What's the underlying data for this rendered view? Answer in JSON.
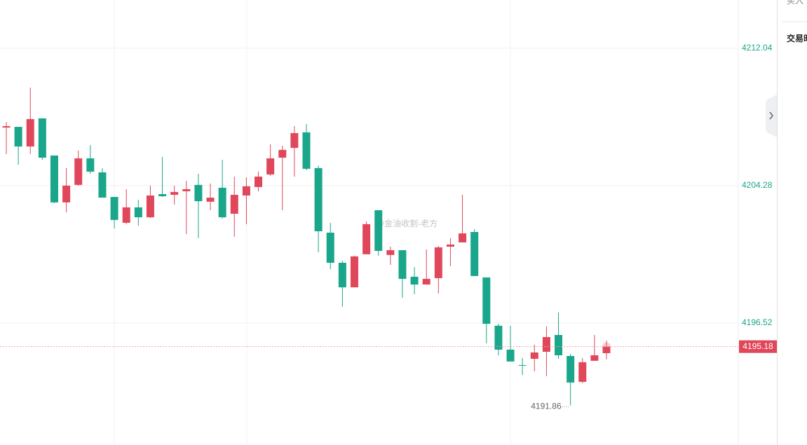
{
  "chart_data": {
    "type": "candlestick",
    "open": [
      4207.56,
      4207.6,
      4206.49,
      4208.08,
      4205.98,
      4203.33,
      4204.32,
      4205.82,
      4205.03,
      4203.64,
      4202.18,
      4203.05,
      4202.49,
      4203.8,
      4203.76,
      4203.96,
      4204.32,
      4203.37,
      4204.16,
      4202.69,
      4203.72,
      4204.2,
      4204.91,
      4205.86,
      4206.41,
      4207.29,
      4205.27,
      4201.62,
      4199.92,
      4198.53,
      4200.4,
      4202.89,
      4200.36,
      4200.63,
      4199.13,
      4198.69,
      4199.05,
      4200.83,
      4201.07,
      4201.66,
      4199.09,
      4196.36,
      4195.01,
      4194.14,
      4194.49,
      4194.89,
      4195.84,
      4194.65,
      4193.19,
      4194.38,
      4194.81
    ],
    "high": [
      4207.88,
      4207.6,
      4209.82,
      4208.08,
      4205.98,
      4205.27,
      4206.26,
      4206.57,
      4205.27,
      4203.64,
      4204.08,
      4203.48,
      4204.28,
      4205.9,
      4204.28,
      4204.55,
      4204.95,
      4204.4,
      4205.74,
      4204.79,
      4204.75,
      4205.07,
      4206.61,
      4206.53,
      4207.64,
      4207.76,
      4205.42,
      4202.18,
      4200.04,
      4200.32,
      4202.26,
      4202.89,
      4200.83,
      4200.63,
      4199.68,
      4200.67,
      4200.87,
      4201.31,
      4203.76,
      4201.82,
      4199.09,
      4196.47,
      4196.36,
      4194.53,
      4195.29,
      4196.32,
      4197.11,
      4194.77,
      4194.53,
      4195.84,
      4195.52
    ],
    "low": [
      4206.06,
      4205.46,
      4206.06,
      4205.74,
      4203.29,
      4202.77,
      4204.28,
      4204.95,
      4203.6,
      4201.86,
      4202.1,
      4202.02,
      4202.45,
      4203.64,
      4203.21,
      4201.54,
      4201.31,
      4202.89,
      4202.41,
      4201.39,
      4202.1,
      4203.96,
      4204.83,
      4202.89,
      4204.79,
      4205.15,
      4200.51,
      4199.56,
      4197.43,
      4198.53,
      4200.4,
      4200.32,
      4199.8,
      4197.94,
      4198.14,
      4198.69,
      4198.18,
      4199.72,
      4201.07,
      4199.17,
      4195.37,
      4194.69,
      4194.34,
      4193.58,
      4193.78,
      4193.51,
      4194.49,
      4191.86,
      4193.11,
      4194.38,
      4194.46
    ],
    "close": [
      4207.64,
      4206.49,
      4208.04,
      4205.86,
      4203.33,
      4204.28,
      4205.82,
      4205.07,
      4203.6,
      4202.34,
      4203.05,
      4202.49,
      4203.72,
      4203.68,
      4203.92,
      4204.08,
      4203.4,
      4203.6,
      4202.49,
      4203.76,
      4204.24,
      4204.79,
      4205.82,
      4206.3,
      4207.25,
      4205.23,
      4201.7,
      4199.92,
      4198.53,
      4200.28,
      4202.1,
      4200.59,
      4200.63,
      4199.01,
      4198.69,
      4199.01,
      4200.79,
      4200.95,
      4201.58,
      4199.17,
      4196.47,
      4195.01,
      4194.34,
      4194.1,
      4194.85,
      4195.72,
      4194.69,
      4193.15,
      4194.3,
      4194.69,
      4195.18
    ],
    "up_color": "#e0475a",
    "down_color": "#1aa68a",
    "ylim": [
      4189.62,
      4214.77
    ],
    "yticks": [
      4212.04,
      4204.28,
      4196.52
    ],
    "grid": true,
    "watermark": "@金油收割-老方"
  },
  "sidebar": {
    "items": [
      "买入",
      "交易时"
    ]
  }
}
